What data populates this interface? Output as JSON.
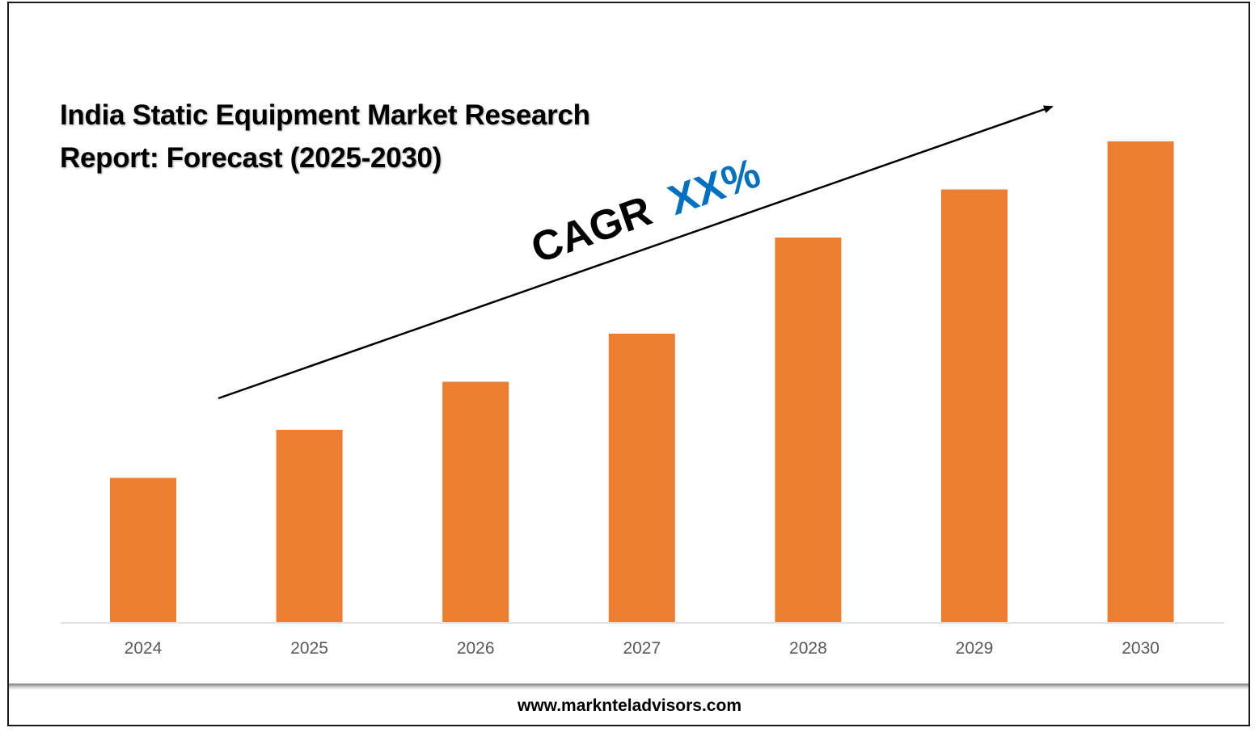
{
  "page": {
    "title": "India Static Equipment Market Research Report: Forecast (2025-2030)",
    "website": "www.marknteladvisors.com"
  },
  "chart_data": {
    "type": "bar",
    "title": "India Static Equipment Market Research Report: Forecast (2025-2030)",
    "categories": [
      "2024",
      "2025",
      "2026",
      "2027",
      "2028",
      "2029",
      "2030"
    ],
    "values": [
      30,
      40,
      50,
      60,
      80,
      90,
      100
    ],
    "ylim": [
      0,
      100
    ],
    "xlabel": "",
    "ylabel": "",
    "bar_color": "#ED7D31",
    "annotation": {
      "prefix": "CAGR",
      "value": "XX%",
      "value_color": "#0070C0"
    },
    "trend_arrow": true,
    "grid": false,
    "legend": "none"
  }
}
